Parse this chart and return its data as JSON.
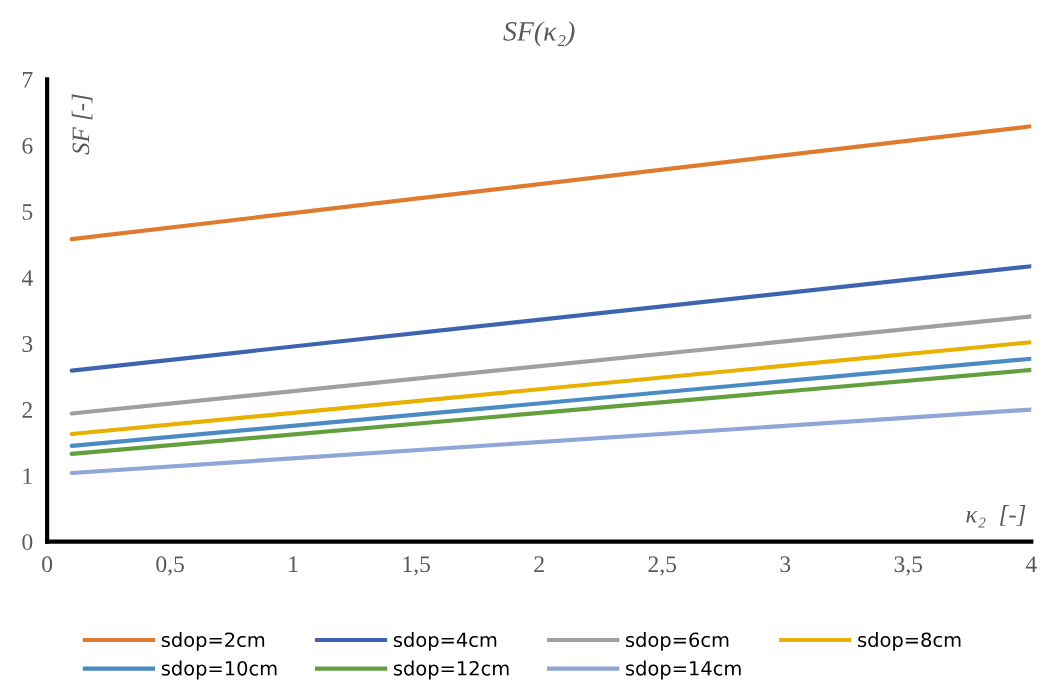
{
  "chart_data": {
    "type": "line",
    "title": "SF(κ₂)",
    "xlabel": "κ₂  [-]",
    "ylabel": "SF [-]",
    "x": [
      0.1,
      4
    ],
    "series": [
      {
        "name": "sdop=2cm",
        "color": "#e07a2f",
        "values": [
          4.58,
          6.29
        ]
      },
      {
        "name": "sdop=4cm",
        "color": "#3e64b0",
        "values": [
          2.59,
          4.17
        ]
      },
      {
        "name": "sdop=6cm",
        "color": "#a0a0a0",
        "values": [
          1.94,
          3.41
        ]
      },
      {
        "name": "sdop=8cm",
        "color": "#e8b000",
        "values": [
          1.63,
          3.02
        ]
      },
      {
        "name": "sdop=10cm",
        "color": "#4a8bc4",
        "values": [
          1.45,
          2.77
        ]
      },
      {
        "name": "sdop=12cm",
        "color": "#62a03e",
        "values": [
          1.33,
          2.6
        ]
      },
      {
        "name": "sdop=14cm",
        "color": "#90a6d8",
        "values": [
          1.04,
          2.0
        ]
      }
    ],
    "xlim": [
      0,
      4
    ],
    "ylim": [
      0,
      7
    ],
    "xticks": [
      0,
      {
        "value": 0.5,
        "label": "0,5"
      },
      1,
      {
        "value": 1.5,
        "label": "1,5"
      },
      2,
      {
        "value": 2.5,
        "label": "2,5"
      },
      3,
      {
        "value": 3.5,
        "label": "3,5"
      },
      4
    ],
    "yticks": [
      0,
      1,
      2,
      3,
      4,
      5,
      6,
      7
    ],
    "grid": false,
    "legend": "bottom",
    "marker": "none",
    "line_style": "solid"
  }
}
